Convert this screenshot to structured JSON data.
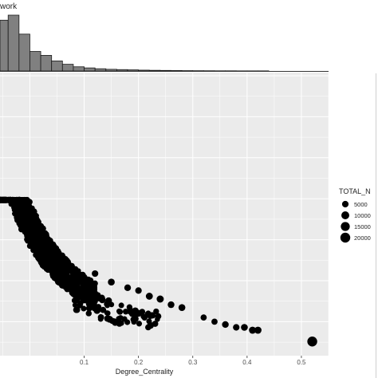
{
  "chart_data": {
    "type": "scatter",
    "title_fragment": "work",
    "xlabel": "Degree_Centrality",
    "ylabel": "",
    "xlim": [
      -0.055,
      0.55
    ],
    "x_ticks": [
      0.1,
      0.2,
      0.3,
      0.4,
      0.5
    ],
    "x_tick_labels": [
      "0.1",
      "0.2",
      "0.3",
      "0.4",
      "0.5"
    ],
    "grid": true,
    "legend": {
      "title": "TOTAL_N",
      "position": "right",
      "entries": [
        {
          "label": "5000",
          "value": 5000
        },
        {
          "label": "10000",
          "value": 10000
        },
        {
          "label": "15000",
          "value": 15000
        },
        {
          "label": "20000",
          "value": 20000
        }
      ]
    },
    "marginal_histogram": {
      "bin_width": 0.02,
      "bin_starts": [
        -0.06,
        -0.04,
        -0.02,
        0.0,
        0.02,
        0.04,
        0.06,
        0.08,
        0.1,
        0.12,
        0.14,
        0.16,
        0.18,
        0.2,
        0.22,
        0.24,
        0.26,
        0.28,
        0.3,
        0.32,
        0.34,
        0.36,
        0.38,
        0.4,
        0.42,
        0.44,
        0.46,
        0.48,
        0.5
      ],
      "relative_counts": [
        0.91,
        1.0,
        0.66,
        0.35,
        0.28,
        0.18,
        0.12,
        0.075,
        0.055,
        0.04,
        0.03,
        0.025,
        0.02,
        0.015,
        0.012,
        0.01,
        0.008,
        0.006,
        0.005,
        0.004,
        0.003,
        0.003,
        0.002,
        0.002,
        0.002,
        0.0,
        0.0,
        0.0,
        0.0
      ]
    },
    "notable_points": [
      {
        "x": 0.52,
        "y_frac": 0.05,
        "total_n": 20000
      },
      {
        "x": 0.42,
        "y_frac": 0.09,
        "total_n": 7000
      },
      {
        "x": 0.41,
        "y_frac": 0.09,
        "total_n": 7000
      },
      {
        "x": 0.395,
        "y_frac": 0.1,
        "total_n": 6000
      },
      {
        "x": 0.38,
        "y_frac": 0.1,
        "total_n": 5000
      },
      {
        "x": 0.36,
        "y_frac": 0.11,
        "total_n": 5500
      },
      {
        "x": 0.34,
        "y_frac": 0.12,
        "total_n": 4000
      },
      {
        "x": 0.32,
        "y_frac": 0.135,
        "total_n": 4000
      },
      {
        "x": 0.28,
        "y_frac": 0.17,
        "total_n": 6000
      },
      {
        "x": 0.26,
        "y_frac": 0.18,
        "total_n": 5500
      },
      {
        "x": 0.24,
        "y_frac": 0.2,
        "total_n": 7000
      },
      {
        "x": 0.22,
        "y_frac": 0.21,
        "total_n": 6500
      },
      {
        "x": 0.2,
        "y_frac": 0.23,
        "total_n": 5000
      },
      {
        "x": 0.18,
        "y_frac": 0.24,
        "total_n": 5500
      },
      {
        "x": 0.15,
        "y_frac": 0.26,
        "total_n": 6000
      },
      {
        "x": 0.12,
        "y_frac": 0.29,
        "total_n": 5000
      }
    ],
    "main_cloud": {
      "x_range": [
        -0.055,
        0.12
      ],
      "description_shape": "dense decaying band"
    }
  }
}
